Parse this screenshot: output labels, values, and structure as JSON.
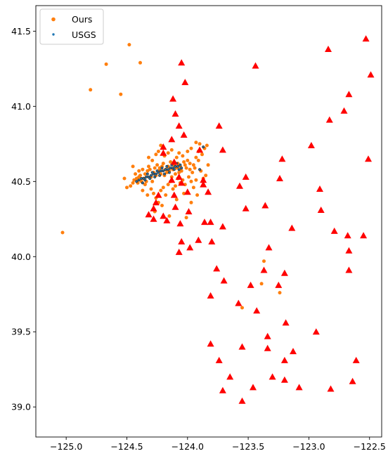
{
  "chart_data": {
    "type": "scatter",
    "title": "",
    "xlabel": "",
    "ylabel": "",
    "xlim": [
      -125.25,
      -122.4
    ],
    "ylim": [
      38.8,
      41.67
    ],
    "x_ticks": [
      -125.0,
      -124.5,
      -124.0,
      -123.5,
      -123.0,
      -122.5
    ],
    "x_tick_labels": [
      "−125.0",
      "−124.5",
      "−124.0",
      "−123.5",
      "−123.0",
      "−122.5"
    ],
    "y_ticks": [
      39.0,
      39.5,
      40.0,
      40.5,
      41.0,
      41.5
    ],
    "y_tick_labels": [
      "39.0",
      "39.5",
      "40.0",
      "40.5",
      "41.0",
      "41.5"
    ],
    "grid": false,
    "legend": {
      "position": "top-left",
      "entries": [
        {
          "label": "Ours",
          "color": "#ff7f0e"
        },
        {
          "label": "USGS",
          "color": "#1f77b4"
        }
      ]
    },
    "colors": {
      "ours": "#ff7f0e",
      "usgs": "#1f77b4",
      "stations": "#ff0000",
      "usgs_outline": "#333333"
    },
    "series": [
      {
        "name": "Ours",
        "marker": "circle",
        "color": "#ff7f0e",
        "points": [
          [
            -124.48,
            41.41
          ],
          [
            -124.67,
            41.28
          ],
          [
            -124.39,
            41.29
          ],
          [
            -124.8,
            41.11
          ],
          [
            -124.55,
            41.08
          ],
          [
            -125.03,
            40.16
          ],
          [
            -124.52,
            40.52
          ],
          [
            -124.5,
            40.46
          ],
          [
            -124.47,
            40.47
          ],
          [
            -124.45,
            40.49
          ],
          [
            -124.44,
            40.51
          ],
          [
            -124.42,
            40.52
          ],
          [
            -124.4,
            40.53
          ],
          [
            -124.38,
            40.5
          ],
          [
            -124.36,
            40.52
          ],
          [
            -124.35,
            40.55
          ],
          [
            -124.33,
            40.57
          ],
          [
            -124.32,
            40.6
          ],
          [
            -124.3,
            40.53
          ],
          [
            -124.28,
            40.56
          ],
          [
            -124.27,
            40.59
          ],
          [
            -124.25,
            40.61
          ],
          [
            -124.24,
            40.57
          ],
          [
            -124.22,
            40.55
          ],
          [
            -124.21,
            40.6
          ],
          [
            -124.2,
            40.62
          ],
          [
            -124.18,
            40.58
          ],
          [
            -124.17,
            40.56
          ],
          [
            -124.16,
            40.6
          ],
          [
            -124.14,
            40.63
          ],
          [
            -124.12,
            40.58
          ],
          [
            -124.11,
            40.61
          ],
          [
            -124.1,
            40.55
          ],
          [
            -124.08,
            40.62
          ],
          [
            -124.06,
            40.6
          ],
          [
            -124.05,
            40.57
          ],
          [
            -124.03,
            40.63
          ],
          [
            -124.01,
            40.59
          ],
          [
            -124.0,
            40.64
          ],
          [
            -123.98,
            40.58
          ],
          [
            -123.96,
            40.56
          ],
          [
            -123.95,
            40.61
          ],
          [
            -123.93,
            40.66
          ],
          [
            -123.91,
            40.7
          ],
          [
            -123.9,
            40.75
          ],
          [
            -123.88,
            40.68
          ],
          [
            -123.86,
            40.72
          ],
          [
            -123.84,
            40.74
          ],
          [
            -123.83,
            40.61
          ],
          [
            -123.85,
            40.54
          ],
          [
            -123.87,
            40.52
          ],
          [
            -123.89,
            40.57
          ],
          [
            -124.45,
            40.6
          ],
          [
            -124.4,
            40.57
          ],
          [
            -124.35,
            40.48
          ],
          [
            -124.3,
            40.45
          ],
          [
            -124.28,
            40.42
          ],
          [
            -124.26,
            40.39
          ],
          [
            -124.24,
            40.36
          ],
          [
            -124.22,
            40.44
          ],
          [
            -124.2,
            40.46
          ],
          [
            -124.18,
            40.41
          ],
          [
            -124.16,
            40.48
          ],
          [
            -124.14,
            40.5
          ],
          [
            -124.12,
            40.45
          ],
          [
            -124.1,
            40.47
          ],
          [
            -124.08,
            40.52
          ],
          [
            -124.06,
            40.49
          ],
          [
            -124.04,
            40.51
          ],
          [
            -124.02,
            40.48
          ],
          [
            -123.99,
            40.53
          ],
          [
            -123.97,
            40.5
          ],
          [
            -123.95,
            40.46
          ],
          [
            -123.93,
            40.51
          ],
          [
            -124.32,
            40.66
          ],
          [
            -124.29,
            40.64
          ],
          [
            -124.26,
            40.68
          ],
          [
            -124.24,
            40.7
          ],
          [
            -124.22,
            40.74
          ],
          [
            -124.19,
            40.67
          ],
          [
            -124.16,
            40.69
          ],
          [
            -124.13,
            40.71
          ],
          [
            -124.09,
            40.66
          ],
          [
            -124.07,
            40.69
          ],
          [
            -124.04,
            40.67
          ],
          [
            -124.0,
            40.7
          ],
          [
            -123.97,
            40.72
          ],
          [
            -123.93,
            40.76
          ],
          [
            -124.37,
            40.44
          ],
          [
            -124.33,
            40.41
          ],
          [
            -124.27,
            40.3
          ],
          [
            -124.21,
            40.34
          ],
          [
            -124.15,
            40.27
          ],
          [
            -124.09,
            40.38
          ],
          [
            -124.03,
            40.42
          ],
          [
            -124.01,
            40.26
          ],
          [
            -123.97,
            40.36
          ],
          [
            -123.92,
            40.41
          ],
          [
            -123.39,
            39.82
          ],
          [
            -123.37,
            39.97
          ],
          [
            -123.55,
            39.66
          ],
          [
            -123.24,
            39.76
          ],
          [
            -124.43,
            40.55
          ],
          [
            -124.41,
            40.49
          ],
          [
            -124.39,
            40.54
          ],
          [
            -124.37,
            40.58
          ],
          [
            -124.34,
            40.5
          ],
          [
            -124.31,
            40.58
          ],
          [
            -124.29,
            40.5
          ],
          [
            -124.26,
            40.54
          ],
          [
            -124.23,
            40.59
          ],
          [
            -124.19,
            40.54
          ],
          [
            -124.15,
            40.57
          ],
          [
            -124.13,
            40.53
          ],
          [
            -124.09,
            40.59
          ],
          [
            -124.07,
            40.56
          ],
          [
            -124.02,
            40.61
          ],
          [
            -123.98,
            40.62
          ],
          [
            -123.94,
            40.59
          ],
          [
            -123.91,
            40.64
          ]
        ]
      },
      {
        "name": "USGS",
        "marker": "small-circle",
        "color": "#1f77b4",
        "points": [
          [
            -124.4,
            40.51
          ],
          [
            -124.38,
            40.52
          ],
          [
            -124.36,
            40.52
          ],
          [
            -124.34,
            40.53
          ],
          [
            -124.32,
            40.53
          ],
          [
            -124.3,
            40.54
          ],
          [
            -124.28,
            40.55
          ],
          [
            -124.26,
            40.55
          ],
          [
            -124.24,
            40.56
          ],
          [
            -124.22,
            40.57
          ],
          [
            -124.2,
            40.57
          ],
          [
            -124.18,
            40.58
          ],
          [
            -124.16,
            40.58
          ],
          [
            -124.14,
            40.59
          ],
          [
            -124.12,
            40.59
          ],
          [
            -124.1,
            40.6
          ],
          [
            -124.08,
            40.6
          ],
          [
            -124.06,
            40.61
          ],
          [
            -124.35,
            40.51
          ],
          [
            -124.31,
            40.52
          ],
          [
            -124.27,
            40.53
          ],
          [
            -124.23,
            40.54
          ],
          [
            -124.19,
            40.55
          ],
          [
            -124.15,
            40.56
          ],
          [
            -124.11,
            40.58
          ],
          [
            -124.07,
            40.58
          ],
          [
            -124.33,
            40.55
          ],
          [
            -124.29,
            40.56
          ],
          [
            -124.25,
            40.57
          ],
          [
            -124.21,
            40.59
          ],
          [
            -124.17,
            40.6
          ],
          [
            -124.13,
            40.61
          ],
          [
            -124.09,
            40.62
          ],
          [
            -123.9,
            40.58
          ],
          [
            -123.87,
            40.73
          ],
          [
            -124.42,
            40.5
          ],
          [
            -124.37,
            40.49
          ],
          [
            -124.05,
            40.59
          ]
        ]
      },
      {
        "name": "",
        "marker": "triangle",
        "color": "#ff0000",
        "points": [
          [
            -124.05,
            41.29
          ],
          [
            -124.02,
            41.16
          ],
          [
            -124.12,
            41.05
          ],
          [
            -124.1,
            40.95
          ],
          [
            -124.07,
            40.87
          ],
          [
            -124.03,
            40.81
          ],
          [
            -124.13,
            40.78
          ],
          [
            -124.2,
            40.73
          ],
          [
            -124.2,
            40.69
          ],
          [
            -123.9,
            40.71
          ],
          [
            -123.74,
            40.87
          ],
          [
            -123.71,
            40.71
          ],
          [
            -123.44,
            41.27
          ],
          [
            -124.11,
            40.63
          ],
          [
            -124.13,
            40.51
          ],
          [
            -124.07,
            40.53
          ],
          [
            -124.05,
            40.49
          ],
          [
            -124.0,
            40.43
          ],
          [
            -124.11,
            40.41
          ],
          [
            -124.24,
            40.41
          ],
          [
            -124.26,
            40.36
          ],
          [
            -124.28,
            40.32
          ],
          [
            -124.32,
            40.28
          ],
          [
            -124.28,
            40.25
          ],
          [
            -124.2,
            40.27
          ],
          [
            -124.17,
            40.24
          ],
          [
            -124.1,
            40.33
          ],
          [
            -123.99,
            40.3
          ],
          [
            -124.06,
            40.22
          ],
          [
            -123.86,
            40.23
          ],
          [
            -123.87,
            40.48
          ],
          [
            -123.83,
            40.43
          ],
          [
            -123.87,
            40.51
          ],
          [
            -123.81,
            40.23
          ],
          [
            -123.71,
            40.2
          ],
          [
            -123.8,
            40.1
          ],
          [
            -124.05,
            40.1
          ],
          [
            -123.98,
            40.06
          ],
          [
            -124.07,
            40.03
          ],
          [
            -123.91,
            40.11
          ],
          [
            -123.76,
            39.92
          ],
          [
            -123.7,
            39.84
          ],
          [
            -123.81,
            39.74
          ],
          [
            -123.57,
            40.47
          ],
          [
            -123.52,
            40.53
          ],
          [
            -123.52,
            40.32
          ],
          [
            -123.36,
            40.34
          ],
          [
            -123.22,
            40.65
          ],
          [
            -123.24,
            40.52
          ],
          [
            -123.14,
            40.19
          ],
          [
            -123.33,
            40.06
          ],
          [
            -123.37,
            39.91
          ],
          [
            -123.48,
            39.81
          ],
          [
            -123.25,
            39.81
          ],
          [
            -123.2,
            39.89
          ],
          [
            -123.58,
            39.69
          ],
          [
            -123.43,
            39.64
          ],
          [
            -123.19,
            39.56
          ],
          [
            -123.34,
            39.47
          ],
          [
            -123.34,
            39.39
          ],
          [
            -123.13,
            39.37
          ],
          [
            -123.2,
            39.31
          ],
          [
            -123.3,
            39.2
          ],
          [
            -123.2,
            39.18
          ],
          [
            -123.08,
            39.13
          ],
          [
            -123.46,
            39.13
          ],
          [
            -123.55,
            39.04
          ],
          [
            -123.71,
            39.11
          ],
          [
            -123.65,
            39.2
          ],
          [
            -123.55,
            39.4
          ],
          [
            -123.81,
            39.42
          ],
          [
            -123.74,
            39.31
          ],
          [
            -122.98,
            40.74
          ],
          [
            -122.91,
            40.45
          ],
          [
            -122.9,
            40.31
          ],
          [
            -122.84,
            41.38
          ],
          [
            -122.83,
            40.91
          ],
          [
            -122.71,
            40.97
          ],
          [
            -122.67,
            41.08
          ],
          [
            -122.53,
            41.45
          ],
          [
            -122.49,
            41.21
          ],
          [
            -122.51,
            40.65
          ],
          [
            -122.55,
            40.14
          ],
          [
            -122.79,
            40.17
          ],
          [
            -122.68,
            40.14
          ],
          [
            -122.67,
            40.04
          ],
          [
            -122.67,
            39.91
          ],
          [
            -122.94,
            39.5
          ],
          [
            -122.61,
            39.31
          ],
          [
            -122.64,
            39.17
          ],
          [
            -122.82,
            39.12
          ]
        ]
      }
    ]
  }
}
